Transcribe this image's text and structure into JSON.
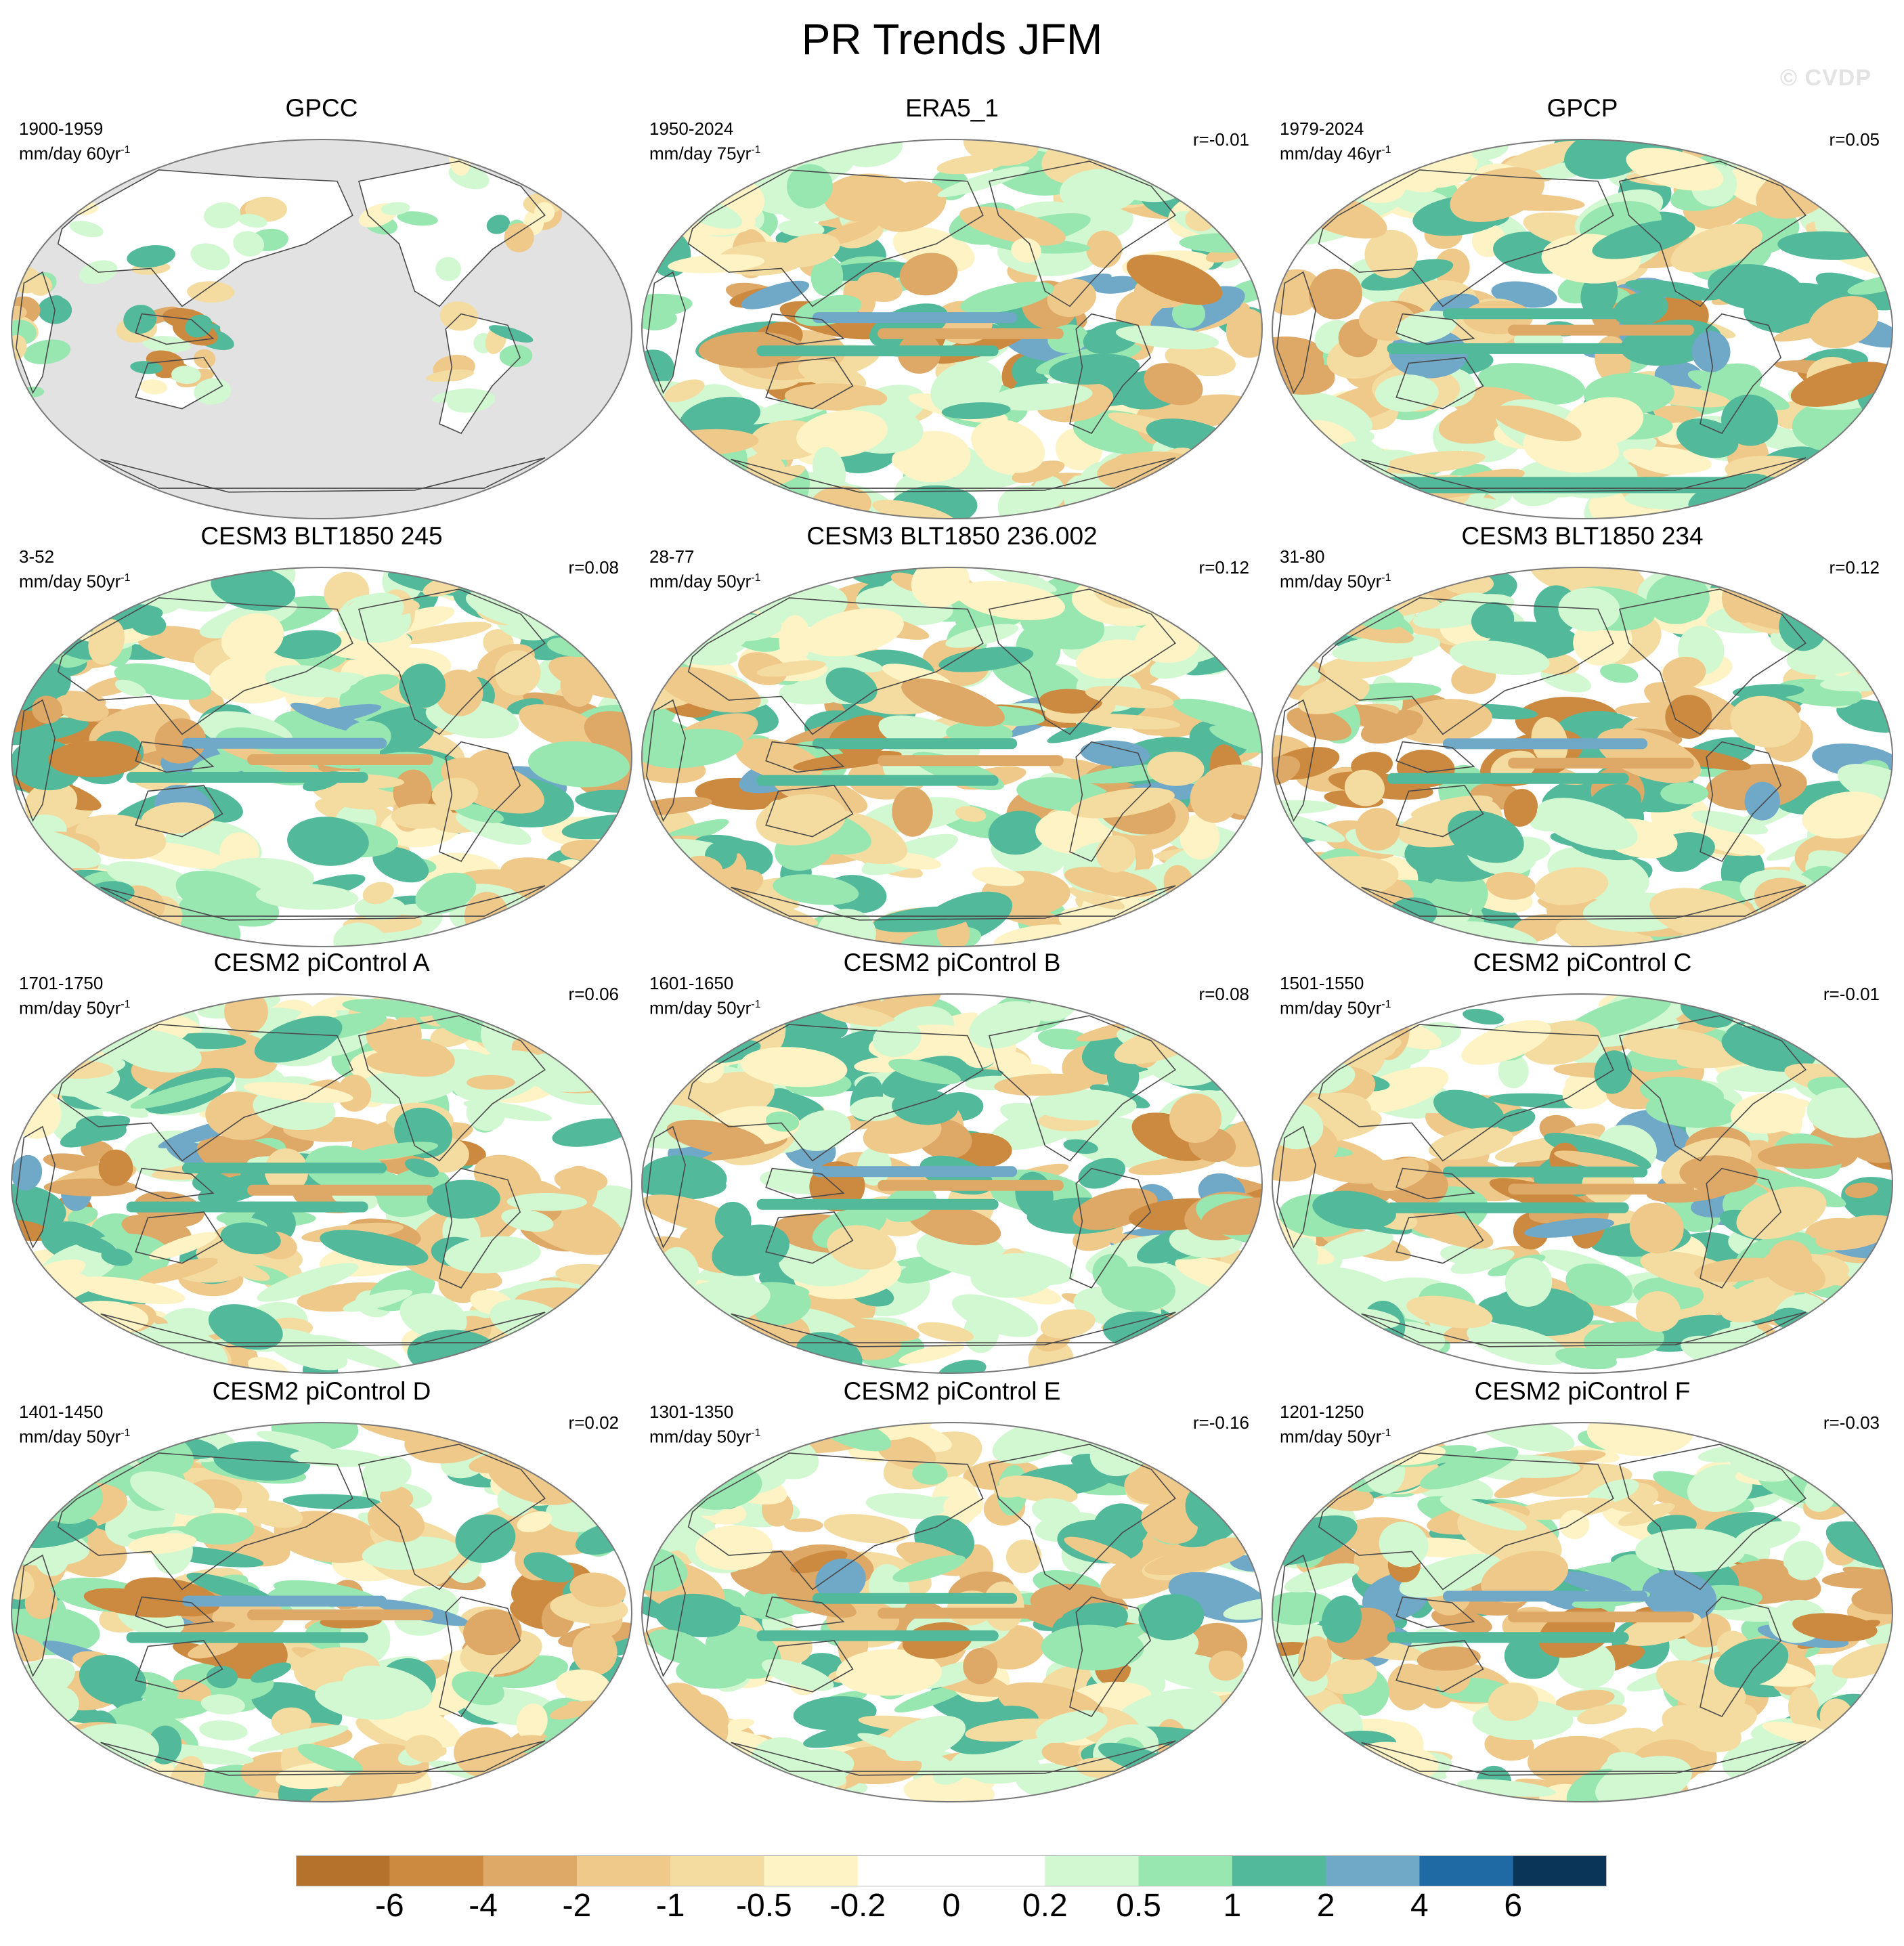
{
  "title": "PR Trends JFM",
  "watermark": "© CVDP",
  "chart_data": {
    "type": "map-panels",
    "title": "PR Trends JFM",
    "projection": "Robinson global, Pacific-centered",
    "variable": "precipitation trend",
    "panels": [
      {
        "title": "GPCC",
        "period": "1900-1959",
        "units": "mm/day 60yr",
        "corr": "",
        "land_only": true
      },
      {
        "title": "ERA5_1",
        "period": "1950-2024",
        "units": "mm/day 75yr",
        "corr": "r=-0.01"
      },
      {
        "title": "GPCP",
        "period": "1979-2024",
        "units": "mm/day 46yr",
        "corr": "r=0.05"
      },
      {
        "title": "CESM3 BLT1850 245",
        "period": "3-52",
        "units": "mm/day 50yr",
        "corr": "r=0.08"
      },
      {
        "title": "CESM3 BLT1850 236.002",
        "period": "28-77",
        "units": "mm/day 50yr",
        "corr": "r=0.12"
      },
      {
        "title": "CESM3 BLT1850 234",
        "period": "31-80",
        "units": "mm/day 50yr",
        "corr": "r=0.12"
      },
      {
        "title": "CESM2 piControl A",
        "period": "1701-1750",
        "units": "mm/day 50yr",
        "corr": "r=0.06"
      },
      {
        "title": "CESM2 piControl B",
        "period": "1601-1650",
        "units": "mm/day 50yr",
        "corr": "r=0.08"
      },
      {
        "title": "CESM2 piControl C",
        "period": "1501-1550",
        "units": "mm/day 50yr",
        "corr": "r=-0.01"
      },
      {
        "title": "CESM2 piControl D",
        "period": "1401-1450",
        "units": "mm/day 50yr",
        "corr": "r=0.02"
      },
      {
        "title": "CESM2 piControl E",
        "period": "1301-1350",
        "units": "mm/day 50yr",
        "corr": "r=-0.16"
      },
      {
        "title": "CESM2 piControl F",
        "period": "1201-1250",
        "units": "mm/day 50yr",
        "corr": "r=-0.03"
      }
    ],
    "colorbar": {
      "levels": [
        -6,
        -4,
        -2,
        -1,
        -0.5,
        -0.2,
        0,
        0.2,
        0.5,
        1,
        2,
        4,
        6
      ],
      "labels": [
        "-6",
        "-4",
        "-2",
        "-1",
        "-0.5",
        "-0.2",
        "0",
        "0.2",
        "0.5",
        "1",
        "2",
        "4",
        "6"
      ],
      "colors": [
        "#b5722c",
        "#cc8a40",
        "#dea866",
        "#efc98a",
        "#f4dca0",
        "#fdf3c4",
        "#ffffff",
        "#ffffff",
        "#d2f8d2",
        "#98e6b0",
        "#52b99b",
        "#70a8c8",
        "#1f6aa5",
        "#0a3558"
      ]
    }
  }
}
